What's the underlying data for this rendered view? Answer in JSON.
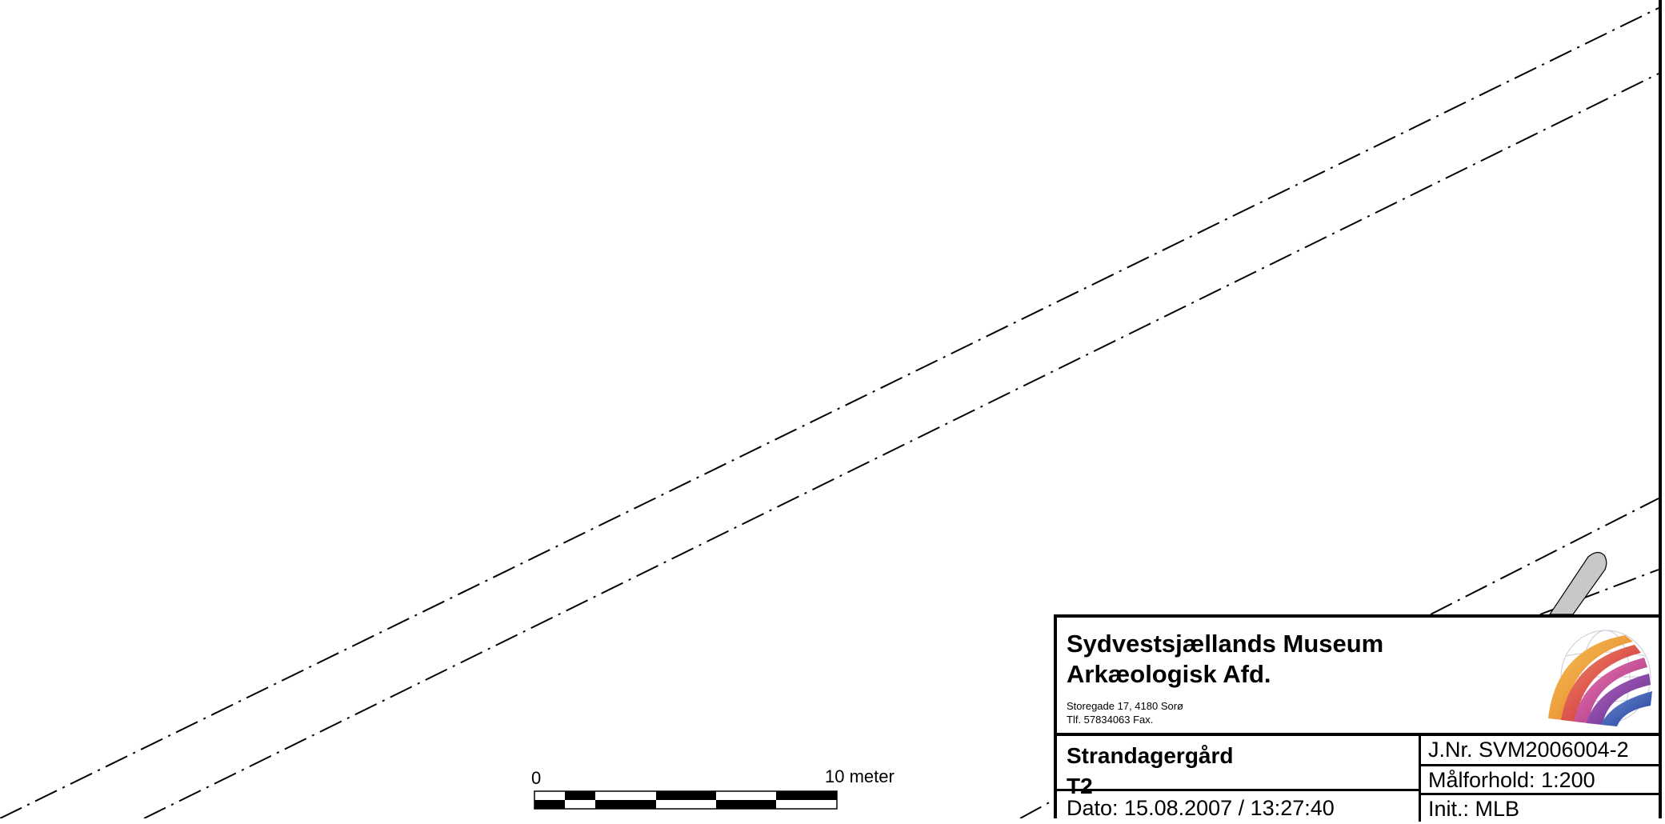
{
  "title_block": {
    "organization_line1": "Sydvestsjællands Museum",
    "organization_line2": "Arkæologisk Afd.",
    "address_line1": "Storegade 17, 4180 Sorø",
    "address_line2": "Tlf. 57834063 Fax.",
    "project_name": "Strandagergård",
    "project_code": "T2",
    "date": "Dato: 15.08.2007 / 13:27:40",
    "journal_number": "J.Nr. SVM2006004-2",
    "scale": "Målforhold: 1:200",
    "initials": "Init.: MLB",
    "logo_icon": "museum-logo-icon"
  },
  "scale_bar": {
    "start_label": "0",
    "end_label": "10 meter",
    "length_m": 10,
    "segments": 5
  },
  "colors": {
    "line": "#000000",
    "object_fill": "#c8c8c8"
  }
}
